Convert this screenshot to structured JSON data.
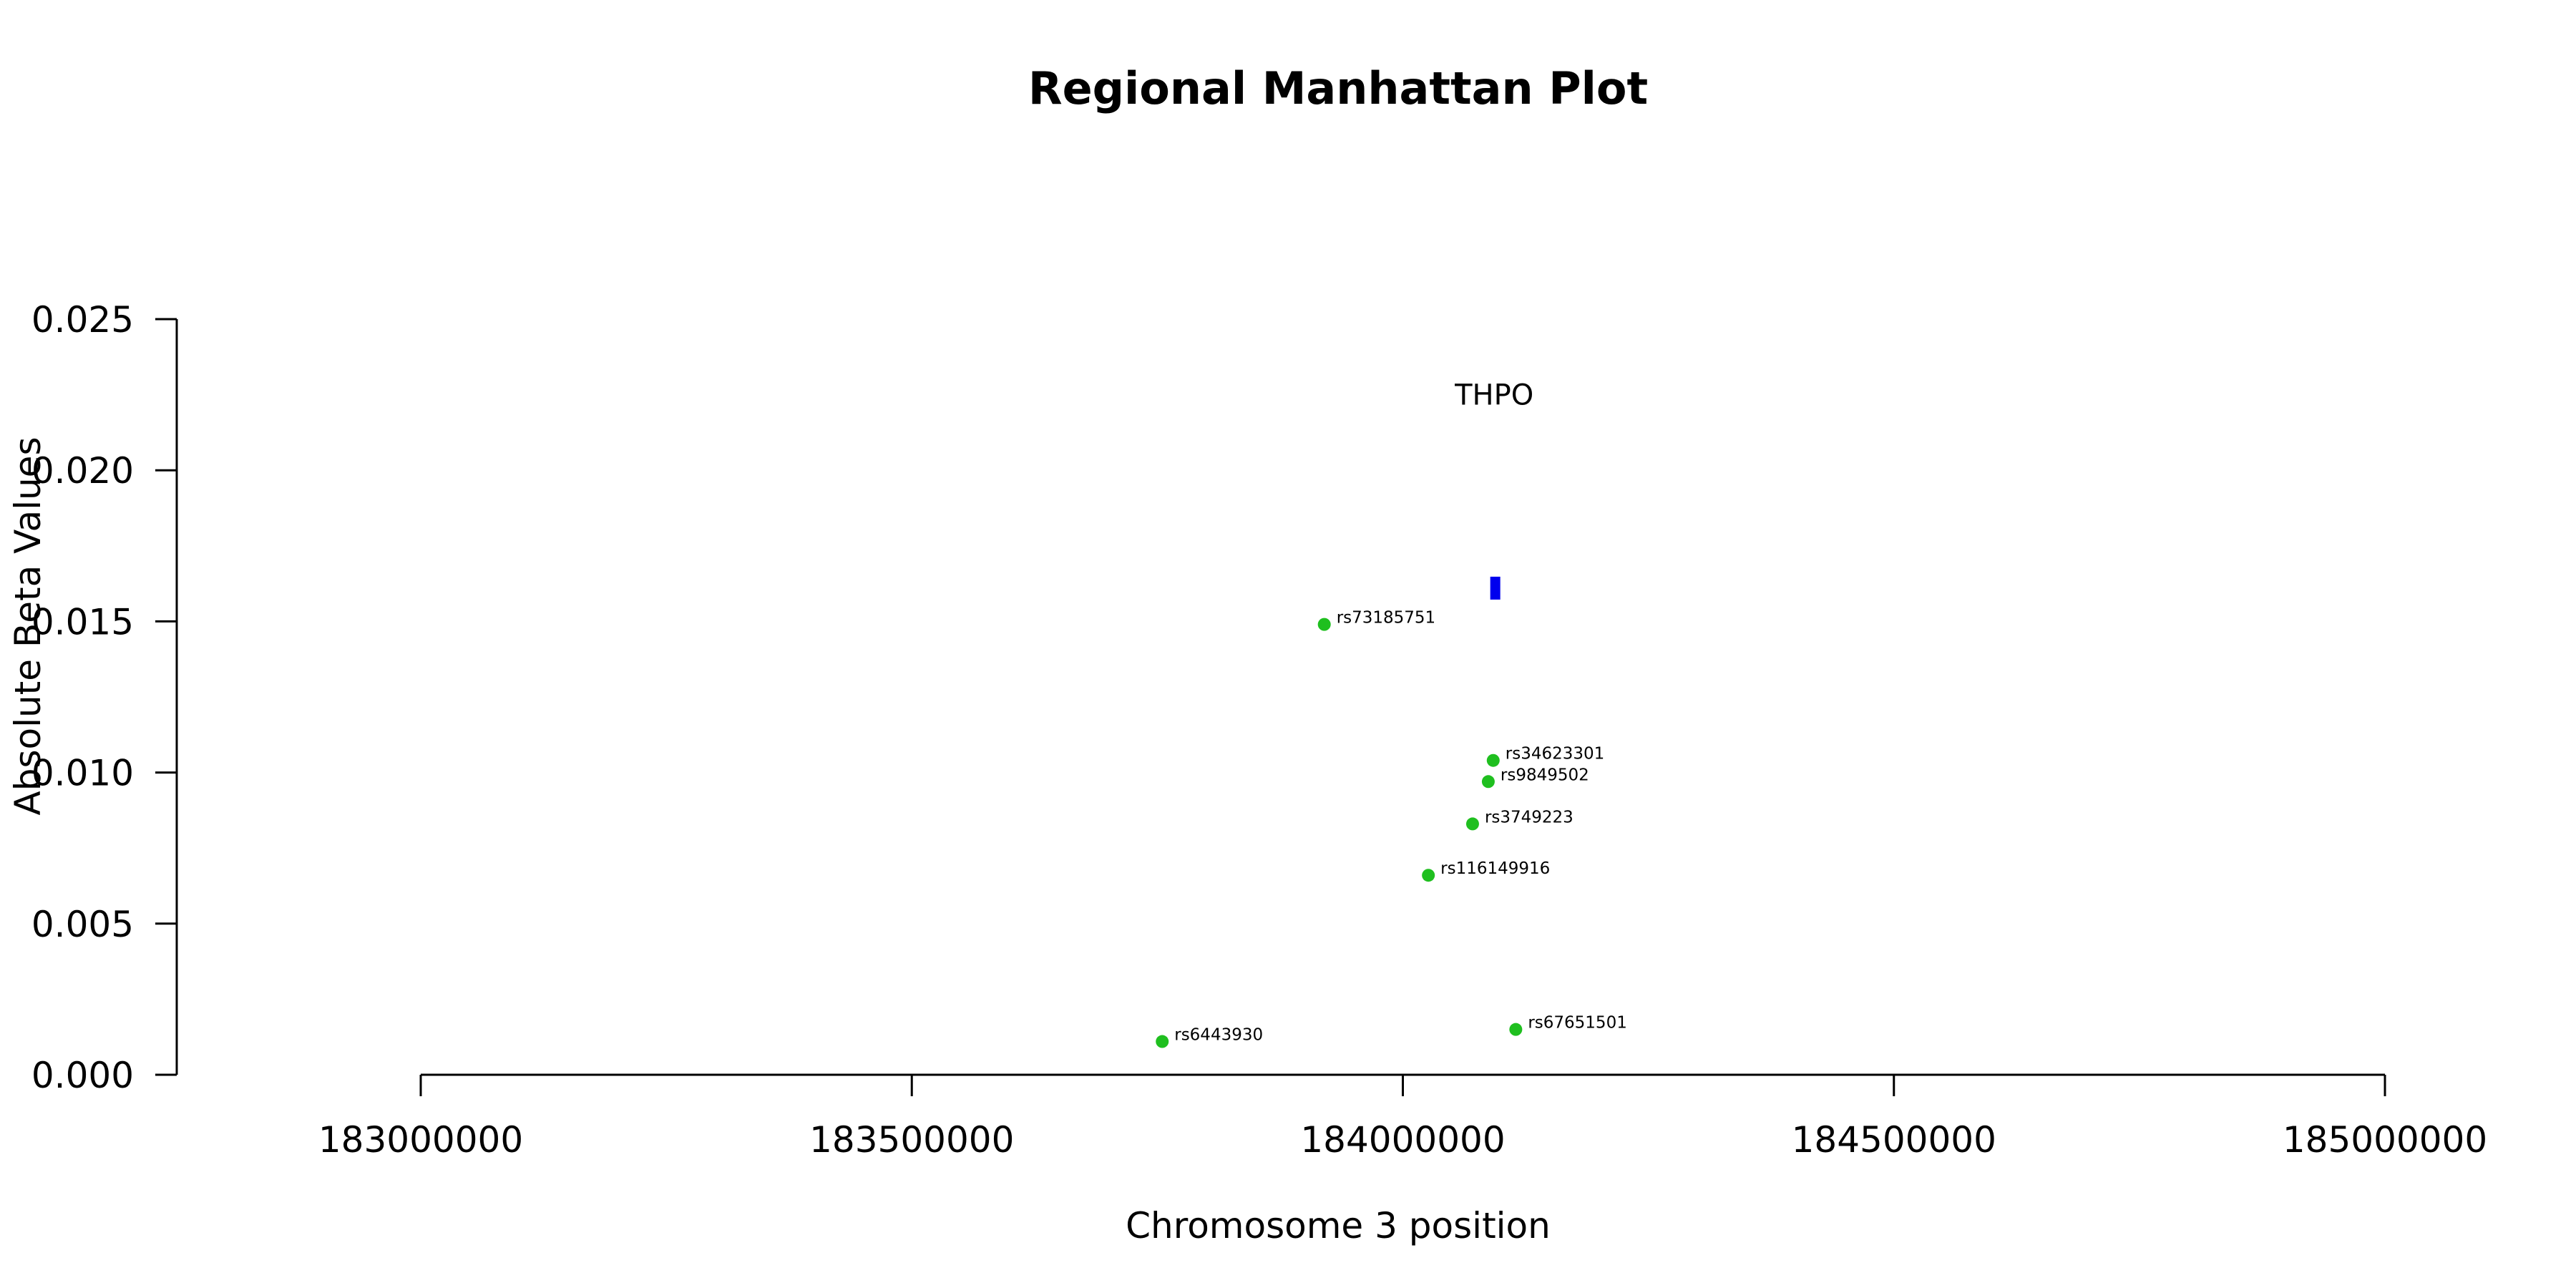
{
  "chart_data": {
    "type": "scatter",
    "title": "Regional Manhattan Plot",
    "xlabel": "Chromosome 3 position",
    "ylabel": "Absolute Beta Values",
    "xlim": [
      183000000,
      185000000
    ],
    "ylim": [
      0,
      0.025
    ],
    "x_ticks": [
      183000000,
      183500000,
      184000000,
      184500000,
      185000000
    ],
    "x_tick_labels": [
      "183000000",
      "183500000",
      "184000000",
      "184500000",
      "185000000"
    ],
    "y_ticks": [
      0,
      0.005,
      0.01,
      0.015,
      0.02,
      0.025
    ],
    "y_tick_labels": [
      "0.000",
      "0.005",
      "0.010",
      "0.015",
      "0.020",
      "0.025"
    ],
    "grid": false,
    "point_color": "#1fbf1f",
    "gene_color": "#0000ee",
    "points": [
      {
        "label": "rs73185751",
        "x": 183920000,
        "y": 0.0149
      },
      {
        "label": "rs34623301",
        "x": 184092000,
        "y": 0.0104
      },
      {
        "label": "rs9849502",
        "x": 184087000,
        "y": 0.0097
      },
      {
        "label": "rs3749223",
        "x": 184071000,
        "y": 0.0083
      },
      {
        "label": "rs116149916",
        "x": 184026000,
        "y": 0.0066
      },
      {
        "label": "rs67651501",
        "x": 184115000,
        "y": 0.0015
      },
      {
        "label": "rs6443930",
        "x": 183755000,
        "y": 0.0011
      }
    ],
    "genes": [
      {
        "name": "THPO",
        "start": 184089000,
        "end": 184097000,
        "y": 0.0161,
        "label_y": 0.0225
      }
    ]
  }
}
